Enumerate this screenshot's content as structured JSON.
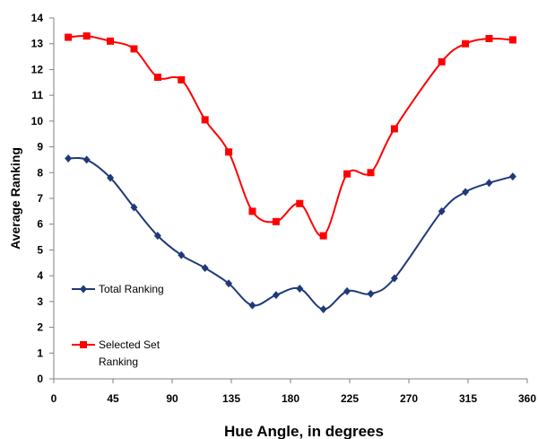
{
  "chart_data": {
    "type": "line",
    "title": "",
    "xlabel": "Hue Angle,  in degrees",
    "ylabel": "Average Ranking",
    "xlim": [
      0,
      360
    ],
    "ylim": [
      0,
      14
    ],
    "xticks": [
      0,
      45,
      90,
      135,
      180,
      225,
      270,
      315,
      360
    ],
    "yticks": [
      0,
      1,
      2,
      3,
      4,
      5,
      6,
      7,
      8,
      9,
      10,
      11,
      12,
      13,
      14
    ],
    "grid": false,
    "legend_position": "left",
    "smooth": true,
    "series": [
      {
        "name": "Total Ranking",
        "color": "#1F3A7A",
        "marker": "diamond",
        "x": [
          11,
          25,
          43,
          61,
          79,
          97,
          115,
          133,
          151,
          169,
          187,
          205,
          223,
          241,
          259,
          295,
          313,
          331,
          349
        ],
        "y": [
          8.55,
          8.5,
          7.8,
          6.65,
          5.55,
          4.8,
          4.3,
          3.7,
          2.85,
          3.25,
          3.5,
          2.7,
          3.4,
          3.3,
          3.9,
          6.5,
          7.25,
          7.6,
          7.85
        ]
      },
      {
        "name": "Selected Set Ranking",
        "legend_lines": [
          "Selected Set",
          "Ranking"
        ],
        "color": "#FF0000",
        "marker": "square",
        "x": [
          11,
          25,
          43,
          61,
          79,
          97,
          115,
          133,
          151,
          169,
          187,
          205,
          223,
          241,
          259,
          295,
          313,
          331,
          349
        ],
        "y": [
          13.25,
          13.3,
          13.1,
          12.8,
          11.7,
          11.6,
          10.05,
          8.8,
          6.5,
          6.1,
          6.8,
          5.55,
          7.95,
          8.0,
          9.7,
          12.3,
          13.0,
          13.2,
          13.15
        ]
      }
    ]
  }
}
